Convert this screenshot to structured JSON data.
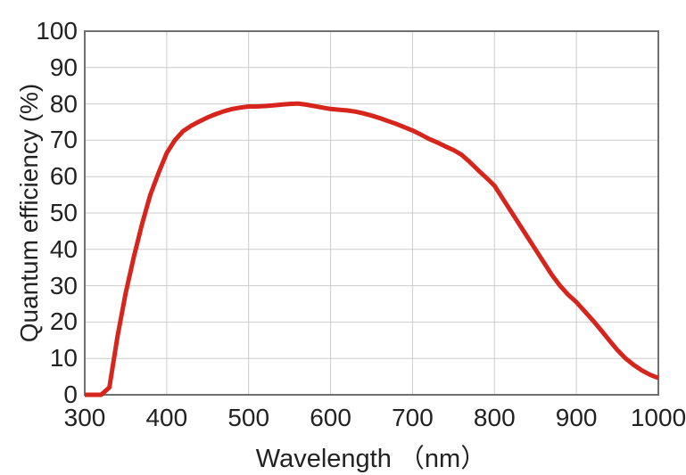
{
  "page": {
    "background": "#ffffff",
    "description": "Spectral response curve of an image sensor"
  },
  "chart_data": {
    "type": "line",
    "title": "",
    "xlabel": "Wavelength （nm）",
    "ylabel": "Quantum efficiency (%)",
    "x_range": [
      300,
      1000
    ],
    "y_range": [
      0,
      100
    ],
    "x_ticks": [
      300,
      400,
      500,
      600,
      700,
      800,
      900,
      1000
    ],
    "y_ticks": [
      0,
      10,
      20,
      30,
      40,
      50,
      60,
      70,
      80,
      90,
      100
    ],
    "grid": true,
    "legend_position": "none",
    "colors": {
      "curve": "#d6251c",
      "grid": "#cccccc",
      "border": "#6f6f6f",
      "text": "#222222"
    },
    "series": [
      {
        "name": "Quantum efficiency",
        "color": "#d6251c",
        "line_width": 5,
        "points": [
          [
            300,
            0
          ],
          [
            320,
            0
          ],
          [
            330,
            2
          ],
          [
            340,
            16
          ],
          [
            350,
            28
          ],
          [
            360,
            38
          ],
          [
            370,
            47
          ],
          [
            380,
            55
          ],
          [
            390,
            61
          ],
          [
            400,
            66.5
          ],
          [
            410,
            70
          ],
          [
            420,
            72.5
          ],
          [
            430,
            74
          ],
          [
            440,
            75.2
          ],
          [
            450,
            76.3
          ],
          [
            460,
            77.2
          ],
          [
            470,
            78
          ],
          [
            480,
            78.6
          ],
          [
            490,
            79
          ],
          [
            500,
            79.3
          ],
          [
            510,
            79.3
          ],
          [
            520,
            79.4
          ],
          [
            530,
            79.6
          ],
          [
            540,
            79.8
          ],
          [
            550,
            80
          ],
          [
            560,
            80.1
          ],
          [
            570,
            79.8
          ],
          [
            580,
            79.4
          ],
          [
            590,
            79
          ],
          [
            600,
            78.6
          ],
          [
            610,
            78.4
          ],
          [
            620,
            78.2
          ],
          [
            630,
            77.9
          ],
          [
            640,
            77.4
          ],
          [
            650,
            76.8
          ],
          [
            660,
            76.1
          ],
          [
            670,
            75.3
          ],
          [
            680,
            74.5
          ],
          [
            690,
            73.6
          ],
          [
            700,
            72.7
          ],
          [
            710,
            71.6
          ],
          [
            720,
            70.4
          ],
          [
            730,
            69.4
          ],
          [
            740,
            68.3
          ],
          [
            750,
            67.3
          ],
          [
            760,
            66
          ],
          [
            770,
            64
          ],
          [
            780,
            61.8
          ],
          [
            790,
            59.7
          ],
          [
            800,
            57.5
          ],
          [
            810,
            54
          ],
          [
            820,
            50.5
          ],
          [
            830,
            47
          ],
          [
            840,
            43.5
          ],
          [
            850,
            40
          ],
          [
            860,
            36.5
          ],
          [
            870,
            33
          ],
          [
            880,
            30
          ],
          [
            890,
            27.5
          ],
          [
            900,
            25.5
          ],
          [
            910,
            23
          ],
          [
            920,
            20.5
          ],
          [
            930,
            17.8
          ],
          [
            940,
            15
          ],
          [
            950,
            12.3
          ],
          [
            960,
            10
          ],
          [
            970,
            8.2
          ],
          [
            980,
            6.7
          ],
          [
            990,
            5.5
          ],
          [
            1000,
            4.6
          ]
        ]
      }
    ]
  }
}
